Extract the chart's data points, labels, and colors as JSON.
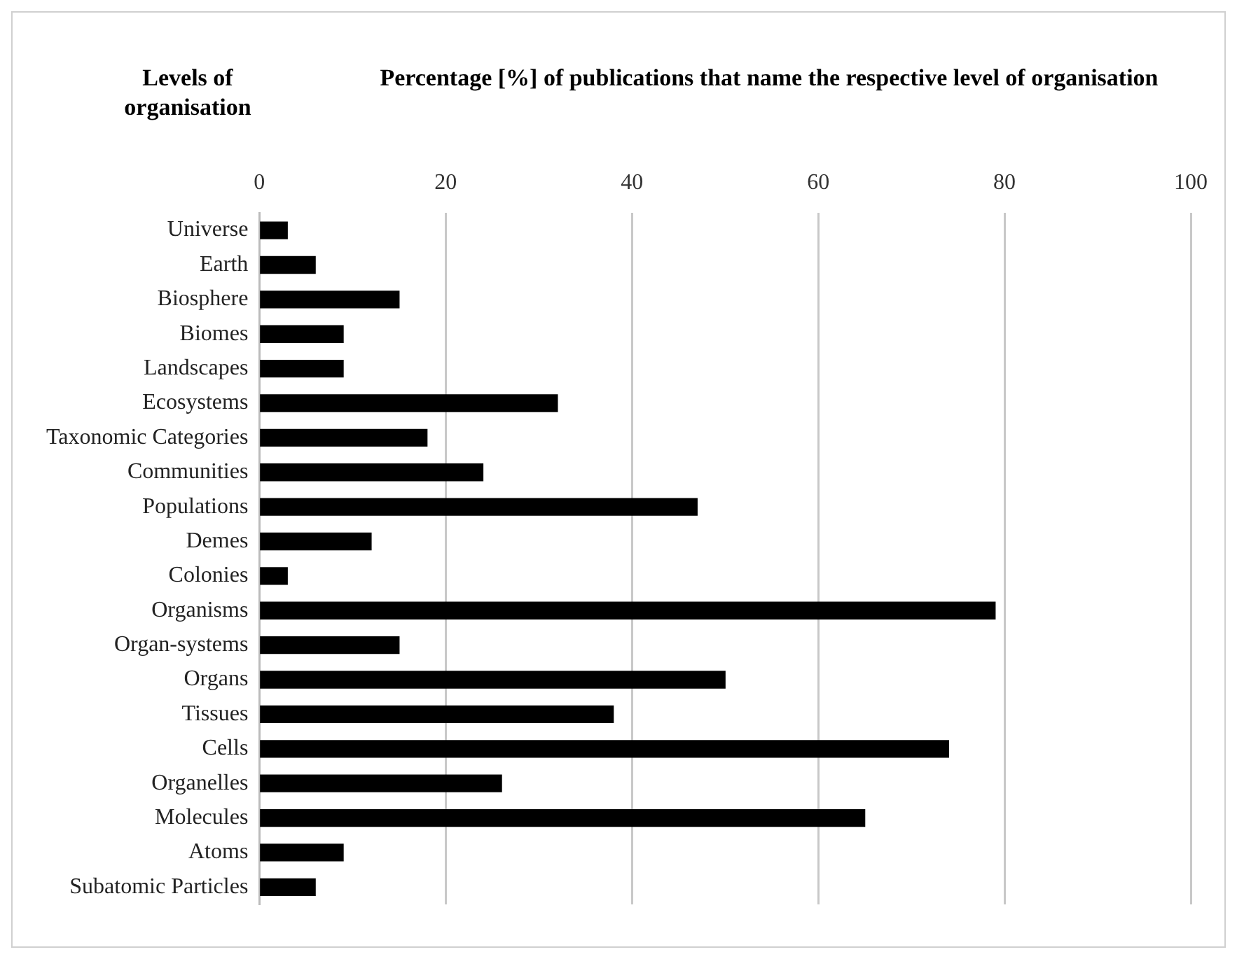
{
  "chart_data": {
    "type": "bar",
    "orientation": "horizontal",
    "title": "Percentage [%] of publications that name the respective level of organisation",
    "ylabel": "Levels of organisation",
    "categories": [
      "Universe",
      "Earth",
      "Biosphere",
      "Biomes",
      "Landscapes",
      "Ecosystems",
      "Taxonomic Categories",
      "Communities",
      "Populations",
      "Demes",
      "Colonies",
      "Organisms",
      "Organ-systems",
      "Organs",
      "Tissues",
      "Cells",
      "Organelles",
      "Molecules",
      "Atoms",
      "Subatomic Particles"
    ],
    "values": [
      3,
      6,
      15,
      9,
      9,
      32,
      18,
      24,
      47,
      12,
      3,
      79,
      15,
      50,
      38,
      74,
      26,
      65,
      9,
      6
    ],
    "color": "#000000",
    "xlim": [
      0,
      100
    ],
    "xticks": [
      0,
      20,
      40,
      60,
      80,
      100
    ],
    "grid": "x",
    "legend": false
  }
}
